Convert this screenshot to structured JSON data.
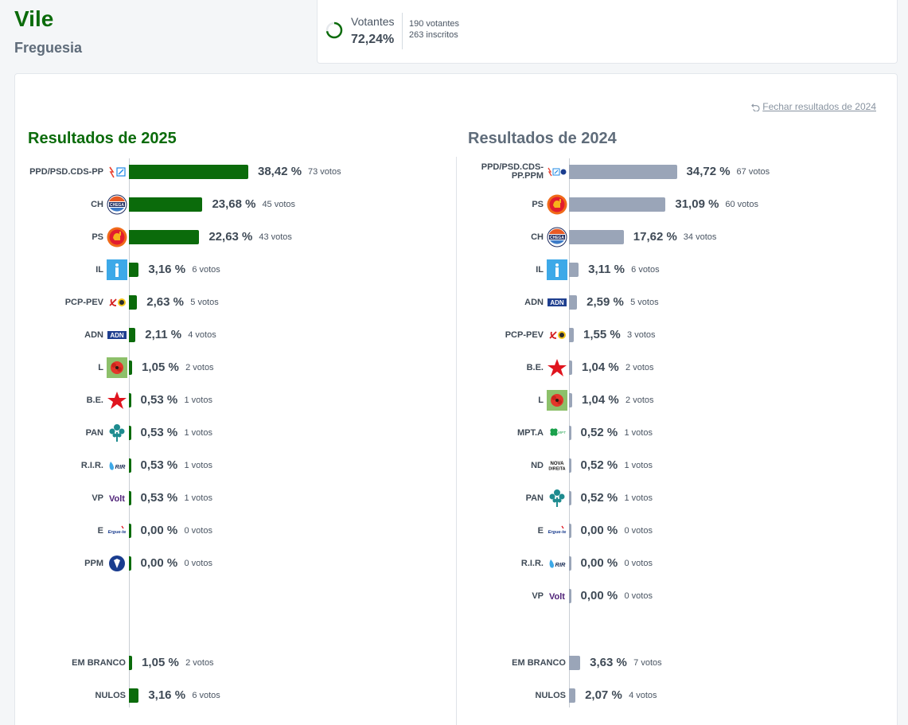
{
  "place": {
    "name": "Vile",
    "type": "Freguesia"
  },
  "turnout": {
    "label": "Votantes",
    "pct": "72,24%",
    "fraction": 0.7224,
    "voters": "190 votantes",
    "registered": "263 inscritos"
  },
  "close_link": "Fechar resultados de 2024",
  "colors": {
    "bar2025": "#0b6b0b",
    "bar2024": "#9aa5b8"
  },
  "results_2025": {
    "title": "Resultados de 2025",
    "rows": [
      {
        "party": "PPD/PSD.CDS-PP",
        "logo": "psd-cds-logo",
        "pct": "38,42 %",
        "value": 38.42,
        "votes": "73 votos"
      },
      {
        "party": "CH",
        "logo": "chega-logo",
        "pct": "23,68 %",
        "value": 23.68,
        "votes": "45 votos"
      },
      {
        "party": "PS",
        "logo": "ps-logo",
        "pct": "22,63 %",
        "value": 22.63,
        "votes": "43 votos"
      },
      {
        "party": "IL",
        "logo": "il-logo",
        "pct": "3,16 %",
        "value": 3.16,
        "votes": "6 votos"
      },
      {
        "party": "PCP-PEV",
        "logo": "cdu-logo",
        "pct": "2,63 %",
        "value": 2.63,
        "votes": "5 votos"
      },
      {
        "party": "ADN",
        "logo": "adn-logo",
        "pct": "2,11 %",
        "value": 2.11,
        "votes": "4 votos"
      },
      {
        "party": "L",
        "logo": "livre-logo",
        "pct": "1,05 %",
        "value": 1.05,
        "votes": "2 votos"
      },
      {
        "party": "B.E.",
        "logo": "be-logo",
        "pct": "0,53 %",
        "value": 0.53,
        "votes": "1 votos"
      },
      {
        "party": "PAN",
        "logo": "pan-logo",
        "pct": "0,53 %",
        "value": 0.53,
        "votes": "1 votos"
      },
      {
        "party": "R.I.R.",
        "logo": "rir-logo",
        "pct": "0,53 %",
        "value": 0.53,
        "votes": "1 votos"
      },
      {
        "party": "VP",
        "logo": "volt-logo",
        "pct": "0,53 %",
        "value": 0.53,
        "votes": "1 votos"
      },
      {
        "party": "E",
        "logo": "ergue-te-logo",
        "pct": "0,00 %",
        "value": 0,
        "votes": "0 votos"
      },
      {
        "party": "PPM",
        "logo": "ppm-logo",
        "pct": "0,00 %",
        "value": 0,
        "votes": "0 votos"
      }
    ],
    "extras": [
      {
        "party": "EM BRANCO",
        "pct": "1,05 %",
        "value": 1.05,
        "votes": "2 votos"
      },
      {
        "party": "NULOS",
        "pct": "3,16 %",
        "value": 3.16,
        "votes": "6 votos"
      }
    ]
  },
  "results_2024": {
    "title": "Resultados de 2024",
    "rows": [
      {
        "party": "PPD/PSD.CDS-PP.PPM",
        "logo": "psd-cds-ppm-logo",
        "pct": "34,72 %",
        "value": 34.72,
        "votes": "67 votos"
      },
      {
        "party": "PS",
        "logo": "ps-logo",
        "pct": "31,09 %",
        "value": 31.09,
        "votes": "60 votos"
      },
      {
        "party": "CH",
        "logo": "chega-logo",
        "pct": "17,62 %",
        "value": 17.62,
        "votes": "34 votos"
      },
      {
        "party": "IL",
        "logo": "il-logo",
        "pct": "3,11 %",
        "value": 3.11,
        "votes": "6 votos"
      },
      {
        "party": "ADN",
        "logo": "adn-logo",
        "pct": "2,59 %",
        "value": 2.59,
        "votes": "5 votos"
      },
      {
        "party": "PCP-PEV",
        "logo": "cdu-logo",
        "pct": "1,55 %",
        "value": 1.55,
        "votes": "3 votos"
      },
      {
        "party": "B.E.",
        "logo": "be-logo",
        "pct": "1,04 %",
        "value": 1.04,
        "votes": "2 votos"
      },
      {
        "party": "L",
        "logo": "livre-logo",
        "pct": "1,04 %",
        "value": 1.04,
        "votes": "2 votos"
      },
      {
        "party": "MPT.A",
        "logo": "mpt-logo",
        "pct": "0,52 %",
        "value": 0.52,
        "votes": "1 votos"
      },
      {
        "party": "ND",
        "logo": "nova-direita-logo",
        "pct": "0,52 %",
        "value": 0.52,
        "votes": "1 votos"
      },
      {
        "party": "PAN",
        "logo": "pan-logo",
        "pct": "0,52 %",
        "value": 0.52,
        "votes": "1 votos"
      },
      {
        "party": "E",
        "logo": "ergue-te-logo",
        "pct": "0,00 %",
        "value": 0,
        "votes": "0 votos"
      },
      {
        "party": "R.I.R.",
        "logo": "rir-logo",
        "pct": "0,00 %",
        "value": 0,
        "votes": "0 votos"
      },
      {
        "party": "VP",
        "logo": "volt-logo",
        "pct": "0,00 %",
        "value": 0,
        "votes": "0 votos"
      }
    ],
    "extras": [
      {
        "party": "EM BRANCO",
        "pct": "3,63 %",
        "value": 3.63,
        "votes": "7 votos"
      },
      {
        "party": "NULOS",
        "pct": "2,07 %",
        "value": 2.07,
        "votes": "4 votos"
      }
    ]
  },
  "logo_text": {
    "chega": "CHEGA",
    "adn": "ADN",
    "rir": "RIR",
    "volt": "Volt",
    "ergue": "Ergue-te",
    "nd1": "NOVA",
    "nd2": "DIREITA",
    "mpt": "MPT"
  }
}
